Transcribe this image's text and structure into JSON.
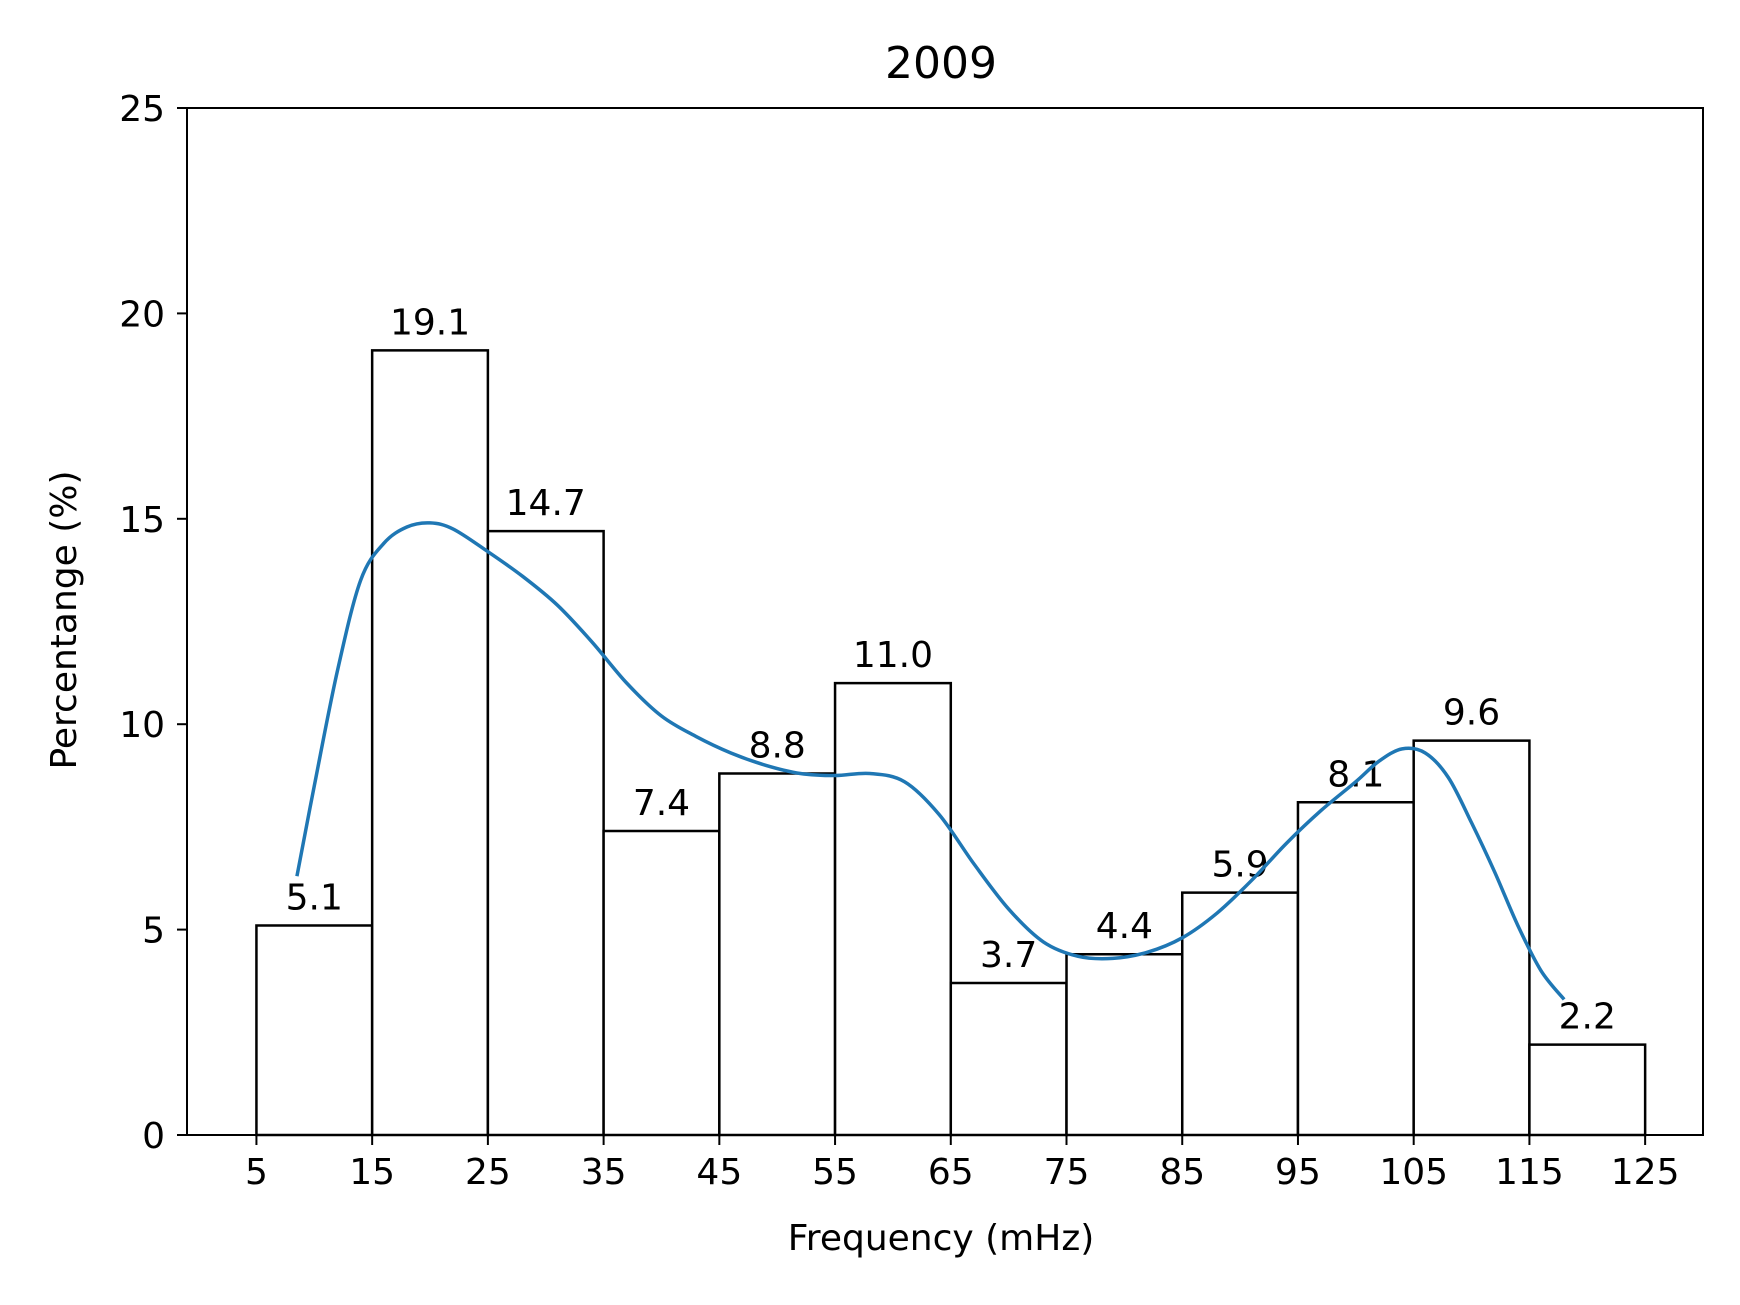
{
  "chart_data": {
    "type": "bar",
    "title": "2009",
    "xlabel": "Frequency (mHz)",
    "ylabel": "Percentange (%)",
    "bin_edges": [
      5,
      15,
      25,
      35,
      45,
      55,
      65,
      75,
      85,
      95,
      105,
      115,
      125
    ],
    "values": [
      5.1,
      19.1,
      14.7,
      7.4,
      8.8,
      11.0,
      3.7,
      4.4,
      5.9,
      8.1,
      9.6,
      2.2
    ],
    "value_labels": [
      "5.1",
      "19.1",
      "14.7",
      "7.4",
      "8.8",
      "11.0",
      "3.7",
      "4.4",
      "5.9",
      "8.1",
      "9.6",
      "2.2"
    ],
    "x_ticks": [
      "5",
      "15",
      "25",
      "35",
      "45",
      "55",
      "65",
      "75",
      "85",
      "95",
      "105",
      "115",
      "125"
    ],
    "y_ticks": [
      "0",
      "5",
      "10",
      "15",
      "20",
      "25"
    ],
    "xlim": [
      -1,
      130
    ],
    "ylim": [
      0,
      25
    ],
    "grid": false,
    "curve": {
      "color": "#1f77b4",
      "points": [
        [
          8.5,
          6.3
        ],
        [
          10,
          8.5
        ],
        [
          12,
          11.3
        ],
        [
          14,
          13.5
        ],
        [
          16,
          14.4
        ],
        [
          18,
          14.8
        ],
        [
          20,
          14.9
        ],
        [
          22,
          14.75
        ],
        [
          25,
          14.2
        ],
        [
          28,
          13.6
        ],
        [
          31,
          12.9
        ],
        [
          34,
          12.0
        ],
        [
          37,
          11.0
        ],
        [
          40,
          10.2
        ],
        [
          43,
          9.7
        ],
        [
          46,
          9.3
        ],
        [
          49,
          9.0
        ],
        [
          52,
          8.8
        ],
        [
          55,
          8.75
        ],
        [
          58,
          8.8
        ],
        [
          61,
          8.6
        ],
        [
          64,
          7.8
        ],
        [
          67,
          6.6
        ],
        [
          70,
          5.5
        ],
        [
          73,
          4.7
        ],
        [
          76,
          4.35
        ],
        [
          79,
          4.3
        ],
        [
          82,
          4.45
        ],
        [
          85,
          4.8
        ],
        [
          88,
          5.4
        ],
        [
          91,
          6.2
        ],
        [
          94,
          7.1
        ],
        [
          97,
          7.9
        ],
        [
          100,
          8.6
        ],
        [
          102,
          9.1
        ],
        [
          104,
          9.4
        ],
        [
          106,
          9.3
        ],
        [
          108,
          8.7
        ],
        [
          110,
          7.6
        ],
        [
          112,
          6.4
        ],
        [
          114,
          5.1
        ],
        [
          116,
          4.0
        ],
        [
          118,
          3.3
        ]
      ]
    }
  },
  "colors": {
    "bar_edge": "#000000",
    "bar_fill": "#ffffff",
    "axis": "#000000"
  }
}
